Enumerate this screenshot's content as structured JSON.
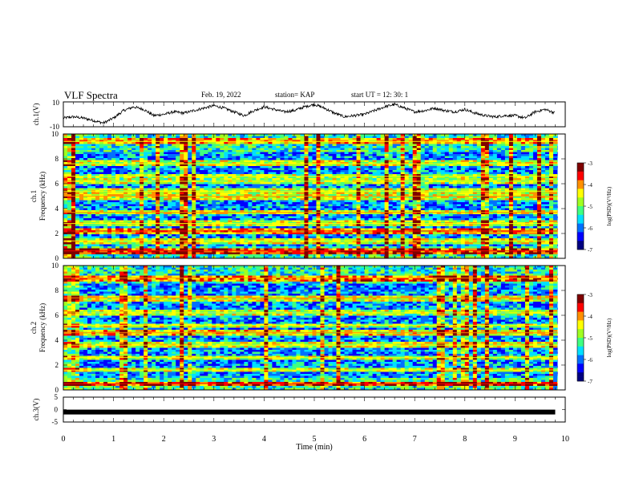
{
  "header": {
    "title": "VLF Spectra",
    "date": "Feb. 19, 2022",
    "station": "station= KAP",
    "start_ut": "start  UT =   12: 30: 1"
  },
  "colors": {
    "spectrogram_colormap": [
      "#00007f",
      "#0000ff",
      "#0070ff",
      "#00e0ff",
      "#40ff80",
      "#a0ff20",
      "#ffff00",
      "#ff9000",
      "#ff0000",
      "#7f0000"
    ],
    "axes": "#000000",
    "trace": "#000000"
  },
  "chart_data": [
    {
      "type": "line",
      "name": "ch1-waveform",
      "ylabel": "ch.1(V)",
      "ylim": [
        -10,
        10
      ],
      "yticks": [
        "10",
        "-10"
      ],
      "x_range_min": [
        0,
        10
      ],
      "x": [
        0,
        0.2,
        0.4,
        0.6,
        0.8,
        1.0,
        1.2,
        1.4,
        1.6,
        1.8,
        2.0,
        2.2,
        2.4,
        2.6,
        2.8,
        3.0,
        3.2,
        3.4,
        3.6,
        3.8,
        4.0,
        4.2,
        4.4,
        4.6,
        4.8,
        5.0,
        5.2,
        5.4,
        5.6,
        5.8,
        6.0,
        6.2,
        6.4,
        6.6,
        6.8,
        7.0,
        7.2,
        7.4,
        7.6,
        7.8,
        8.0,
        8.2,
        8.4,
        8.6,
        8.8,
        9.0,
        9.2,
        9.4,
        9.6,
        9.8
      ],
      "values": [
        -3,
        -2,
        -3,
        -5,
        -7,
        -3,
        3,
        6,
        4,
        -1,
        0,
        2,
        1,
        3,
        5,
        7,
        5,
        2,
        -1,
        3,
        6,
        4,
        2,
        3,
        6,
        8,
        5,
        1,
        -2,
        -1,
        0,
        3,
        6,
        8,
        5,
        2,
        3,
        5,
        3,
        2,
        4,
        1,
        -1,
        -2,
        -1,
        -1,
        -3,
        2,
        4,
        1
      ]
    },
    {
      "type": "heatmap",
      "name": "ch1-spectrogram",
      "ylabel": "ch.1\nFrequency (kHz)",
      "ylim": [
        0,
        10
      ],
      "yticks": [
        "0",
        "2",
        "4",
        "6",
        "8",
        "10"
      ],
      "colorbar": {
        "label": "log(PSD)(V²/Hz)",
        "range": [
          -7,
          -3
        ],
        "ticks": [
          "-3",
          "-4",
          "-5",
          "-6",
          "-7"
        ]
      },
      "bands_khz": [
        {
          "f": 0.6,
          "w": 0.15,
          "level": -3.8
        },
        {
          "f": 1.4,
          "w": 0.15,
          "level": -4.3
        },
        {
          "f": 2.2,
          "w": 0.2,
          "level": -3.6
        },
        {
          "f": 2.8,
          "w": 0.15,
          "level": -4.4
        },
        {
          "f": 3.7,
          "w": 0.15,
          "level": -4.2
        },
        {
          "f": 5.0,
          "w": 0.25,
          "level": -4.2
        },
        {
          "f": 5.4,
          "w": 0.15,
          "level": -4.4
        },
        {
          "f": 6.2,
          "w": 0.15,
          "level": -4.5
        },
        {
          "f": 6.6,
          "w": 0.15,
          "level": -4.6
        },
        {
          "f": 7.6,
          "w": 0.2,
          "level": -4.4
        },
        {
          "f": 9.4,
          "w": 0.2,
          "level": -4.3
        }
      ]
    },
    {
      "type": "heatmap",
      "name": "ch2-spectrogram",
      "ylabel": "ch.2\nFrequency (kHz)",
      "ylim": [
        0,
        10
      ],
      "yticks": [
        "0",
        "2",
        "4",
        "6",
        "8",
        "10"
      ],
      "colorbar": {
        "label": "log(PSD)(V²/Hz)",
        "range": [
          -7,
          -3
        ],
        "ticks": [
          "-3",
          "-4",
          "-5",
          "-6",
          "-7"
        ]
      },
      "bands_khz": [
        {
          "f": 0.5,
          "w": 0.15,
          "level": -3.8
        },
        {
          "f": 1.6,
          "w": 0.15,
          "level": -4.3
        },
        {
          "f": 2.6,
          "w": 0.15,
          "level": -4.4
        },
        {
          "f": 3.6,
          "w": 0.15,
          "level": -4.3
        },
        {
          "f": 4.6,
          "w": 0.2,
          "level": -4.0
        },
        {
          "f": 5.2,
          "w": 0.15,
          "level": -4.5
        },
        {
          "f": 6.2,
          "w": 0.15,
          "level": -4.5
        },
        {
          "f": 7.4,
          "w": 0.2,
          "level": -4.2
        },
        {
          "f": 9.0,
          "w": 0.2,
          "level": -4.1
        }
      ]
    },
    {
      "type": "line",
      "name": "ch3-waveform",
      "ylabel": "ch.3(V)",
      "ylim": [
        -5,
        5
      ],
      "yticks": [
        "5",
        "0",
        "-5"
      ],
      "xlabel": "Time (min)",
      "xlim": [
        0,
        10
      ],
      "xticks": [
        "0",
        "1",
        "2",
        "3",
        "4",
        "5",
        "6",
        "7",
        "8",
        "9",
        "10"
      ],
      "x": [
        0,
        9.8
      ],
      "values": [
        -1,
        -1
      ]
    }
  ]
}
